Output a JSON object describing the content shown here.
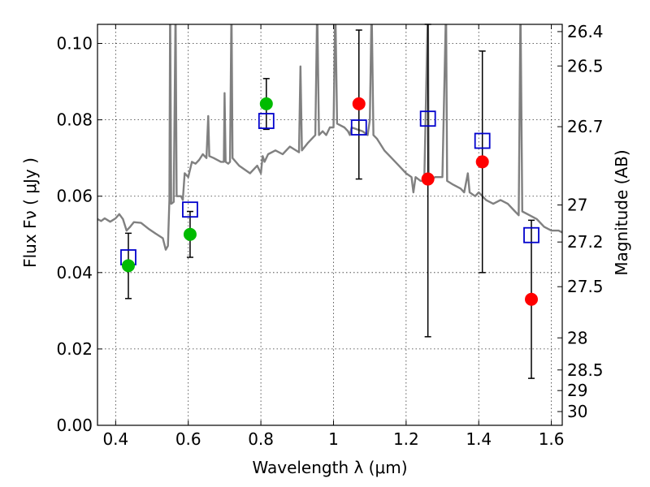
{
  "chart_data": {
    "type": "scatter",
    "xlabel": "Wavelength  λ (μm)",
    "ylabel_left": "Flux  Fν  ( μJy )",
    "ylabel_right": "Magnitude (AB)",
    "xlim": [
      0.35,
      1.63
    ],
    "ylim": [
      0.0,
      0.105
    ],
    "x_ticks": [
      0.4,
      0.6,
      0.8,
      1.0,
      1.2,
      1.4,
      1.6
    ],
    "x_tick_labels": [
      "0.4",
      "0.6",
      "0.8",
      "1",
      "1.2",
      "1.4",
      "1.6"
    ],
    "y_ticks": [
      0.0,
      0.02,
      0.04,
      0.06,
      0.08,
      0.1
    ],
    "y_tick_labels": [
      "0.00",
      "0.02",
      "0.04",
      "0.06",
      "0.08",
      "0.10"
    ],
    "right_ticks": [
      {
        "label": "26.4",
        "flux": 0.1031
      },
      {
        "label": "26.5",
        "flux": 0.0941
      },
      {
        "label": "26.7",
        "flux": 0.0782
      },
      {
        "label": "27",
        "flux": 0.0577
      },
      {
        "label": "27.2",
        "flux": 0.048
      },
      {
        "label": "27.5",
        "flux": 0.0363
      },
      {
        "label": "28",
        "flux": 0.0229
      },
      {
        "label": "28.5",
        "flux": 0.0145
      },
      {
        "label": "29",
        "flux": 0.0091
      },
      {
        "label": "30",
        "flux": 0.0036
      }
    ],
    "grid": true,
    "series": [
      {
        "kind": "spectrum-line",
        "color": "#808080",
        "points": [
          [
            0.35,
            0.054
          ],
          [
            0.36,
            0.0535
          ],
          [
            0.37,
            0.0542
          ],
          [
            0.385,
            0.0533
          ],
          [
            0.4,
            0.0542
          ],
          [
            0.41,
            0.0553
          ],
          [
            0.42,
            0.054
          ],
          [
            0.43,
            0.051
          ],
          [
            0.44,
            0.052
          ],
          [
            0.45,
            0.0532
          ],
          [
            0.47,
            0.053
          ],
          [
            0.49,
            0.0515
          ],
          [
            0.51,
            0.0502
          ],
          [
            0.53,
            0.049
          ],
          [
            0.538,
            0.046
          ],
          [
            0.544,
            0.047
          ],
          [
            0.548,
            0.059
          ],
          [
            0.55,
            0.11
          ],
          [
            0.553,
            0.058
          ],
          [
            0.56,
            0.0585
          ],
          [
            0.565,
            0.11
          ],
          [
            0.568,
            0.06
          ],
          [
            0.58,
            0.06
          ],
          [
            0.585,
            0.059
          ],
          [
            0.59,
            0.066
          ],
          [
            0.6,
            0.065
          ],
          [
            0.61,
            0.069
          ],
          [
            0.62,
            0.0685
          ],
          [
            0.63,
            0.0695
          ],
          [
            0.64,
            0.071
          ],
          [
            0.65,
            0.07
          ],
          [
            0.655,
            0.081
          ],
          [
            0.658,
            0.0705
          ],
          [
            0.67,
            0.07
          ],
          [
            0.69,
            0.069
          ],
          [
            0.698,
            0.069
          ],
          [
            0.7,
            0.087
          ],
          [
            0.703,
            0.069
          ],
          [
            0.71,
            0.0685
          ],
          [
            0.715,
            0.069
          ],
          [
            0.719,
            0.11
          ],
          [
            0.722,
            0.07
          ],
          [
            0.74,
            0.068
          ],
          [
            0.77,
            0.066
          ],
          [
            0.79,
            0.068
          ],
          [
            0.8,
            0.066
          ],
          [
            0.805,
            0.0705
          ],
          [
            0.81,
            0.069
          ],
          [
            0.82,
            0.071
          ],
          [
            0.84,
            0.072
          ],
          [
            0.86,
            0.071
          ],
          [
            0.88,
            0.073
          ],
          [
            0.905,
            0.0715
          ],
          [
            0.909,
            0.094
          ],
          [
            0.913,
            0.072
          ],
          [
            0.93,
            0.074
          ],
          [
            0.95,
            0.076
          ],
          [
            0.955,
            0.11
          ],
          [
            0.96,
            0.076
          ],
          [
            0.97,
            0.077
          ],
          [
            0.98,
            0.076
          ],
          [
            0.99,
            0.078
          ],
          [
            1.0,
            0.078
          ],
          [
            1.005,
            0.11
          ],
          [
            1.01,
            0.079
          ],
          [
            1.03,
            0.078
          ],
          [
            1.04,
            0.077
          ],
          [
            1.045,
            0.076
          ],
          [
            1.05,
            0.078
          ],
          [
            1.08,
            0.077
          ],
          [
            1.094,
            0.076
          ],
          [
            1.1,
            0.08
          ],
          [
            1.105,
            0.11
          ],
          [
            1.11,
            0.076
          ],
          [
            1.12,
            0.075
          ],
          [
            1.14,
            0.072
          ],
          [
            1.16,
            0.07
          ],
          [
            1.18,
            0.068
          ],
          [
            1.2,
            0.066
          ],
          [
            1.215,
            0.065
          ],
          [
            1.22,
            0.061
          ],
          [
            1.226,
            0.065
          ],
          [
            1.24,
            0.064
          ],
          [
            1.25,
            0.064
          ],
          [
            1.26,
            0.11
          ],
          [
            1.262,
            0.064
          ],
          [
            1.28,
            0.065
          ],
          [
            1.3,
            0.065
          ],
          [
            1.31,
            0.11
          ],
          [
            1.313,
            0.064
          ],
          [
            1.33,
            0.063
          ],
          [
            1.35,
            0.062
          ],
          [
            1.36,
            0.061
          ],
          [
            1.37,
            0.066
          ],
          [
            1.375,
            0.061
          ],
          [
            1.39,
            0.06
          ],
          [
            1.4,
            0.061
          ],
          [
            1.41,
            0.06
          ],
          [
            1.42,
            0.059
          ],
          [
            1.44,
            0.058
          ],
          [
            1.46,
            0.059
          ],
          [
            1.48,
            0.058
          ],
          [
            1.5,
            0.056
          ],
          [
            1.51,
            0.055
          ],
          [
            1.515,
            0.11
          ],
          [
            1.52,
            0.056
          ],
          [
            1.54,
            0.055
          ],
          [
            1.56,
            0.054
          ],
          [
            1.58,
            0.052
          ],
          [
            1.6,
            0.051
          ],
          [
            1.62,
            0.051
          ],
          [
            1.63,
            0.0505
          ]
        ]
      },
      {
        "kind": "model-squares",
        "color": "#0000cc",
        "points": [
          [
            0.435,
            0.044
          ],
          [
            0.605,
            0.0565
          ],
          [
            0.815,
            0.0797
          ],
          [
            1.07,
            0.078
          ],
          [
            1.26,
            0.0803
          ],
          [
            1.41,
            0.0745
          ],
          [
            1.545,
            0.0498
          ]
        ]
      },
      {
        "kind": "detections",
        "color": "#00bb00",
        "points": [
          {
            "x": 0.435,
            "y": 0.0418,
            "ylo": 0.0332,
            "yhi": 0.0503
          },
          {
            "x": 0.605,
            "y": 0.05,
            "ylo": 0.044,
            "yhi": 0.056
          },
          {
            "x": 0.815,
            "y": 0.0842,
            "ylo": 0.0775,
            "yhi": 0.0908
          }
        ]
      },
      {
        "kind": "detections",
        "color": "#ff0000",
        "points": [
          {
            "x": 1.07,
            "y": 0.0842,
            "ylo": 0.0645,
            "yhi": 0.1035
          },
          {
            "x": 1.26,
            "y": 0.0645,
            "ylo": 0.0232,
            "yhi": 0.11
          },
          {
            "x": 1.41,
            "y": 0.069,
            "ylo": 0.04,
            "yhi": 0.098
          },
          {
            "x": 1.545,
            "y": 0.033,
            "ylo": 0.0123,
            "yhi": 0.0537
          }
        ]
      }
    ]
  }
}
